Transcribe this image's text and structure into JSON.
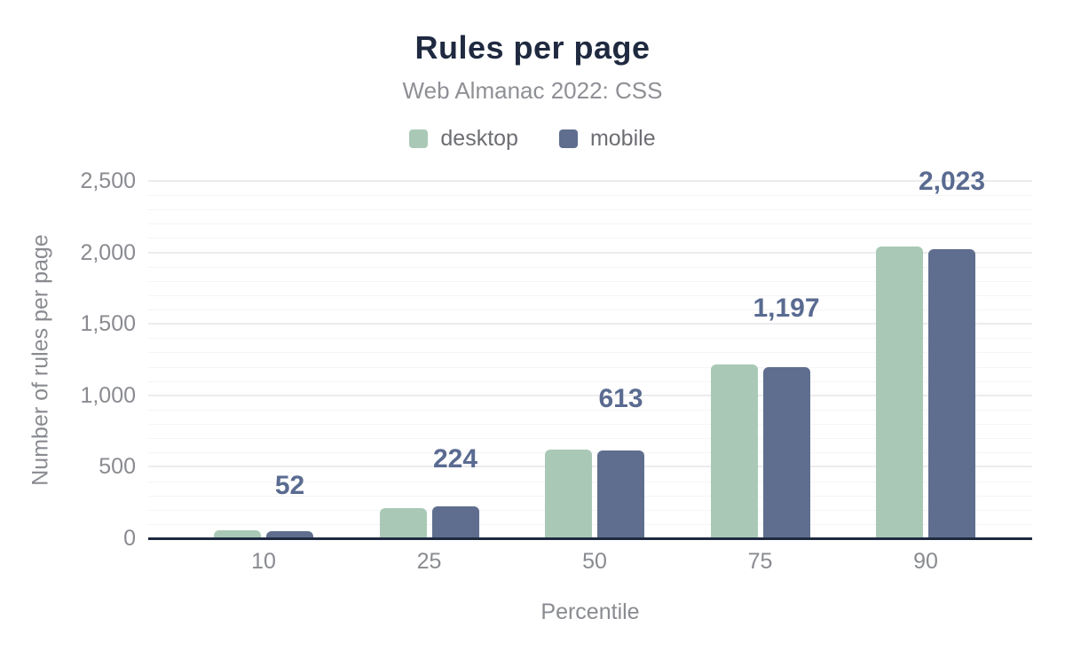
{
  "chart": {
    "title": "Rules per page",
    "subtitle": "Web Almanac 2022: CSS",
    "x_axis_title": "Percentile",
    "y_axis_title": "Number of rules per page"
  },
  "legend": {
    "items": [
      {
        "label": "desktop",
        "color": "#a9c9b6"
      },
      {
        "label": "mobile",
        "color": "#5f6e8e"
      }
    ]
  },
  "chart_data": {
    "type": "bar",
    "title": "Rules per page",
    "subtitle": "Web Almanac 2022: CSS",
    "xlabel": "Percentile",
    "ylabel": "Number of rules per page",
    "categories": [
      "10",
      "25",
      "50",
      "75",
      "90"
    ],
    "series": [
      {
        "name": "desktop",
        "color": "#a9c9b6",
        "estimated": true,
        "values": [
          57,
          210,
          619,
          1215,
          2040
        ]
      },
      {
        "name": "mobile",
        "color": "#5f6e8e",
        "estimated": false,
        "values": [
          52,
          224,
          613,
          1197,
          2023
        ]
      }
    ],
    "data_labels": {
      "series": "mobile",
      "labels": [
        "52",
        "224",
        "613",
        "1,197",
        "2,023"
      ]
    },
    "ylim": [
      0,
      2500
    ],
    "y_tick_labels": [
      "0",
      "500",
      "1,000",
      "1,500",
      "2,000",
      "2,500"
    ],
    "grid": "horizontal",
    "minor_grid_step": 100,
    "major_grid_step": 500,
    "legend_position": "top center"
  },
  "colors": {
    "background": "#ffffff",
    "title": "#1f2a40",
    "subtitle": "#8f9095",
    "legend_text": "#6d6e73",
    "axis_text": "#898b90",
    "data_label": "#5a6b91",
    "axis_line": "#1f2a40",
    "grid_minor": "#f5f5f6",
    "grid_major": "#ececee",
    "desktop_bar": "#a9c9b6",
    "mobile_bar": "#5f6e8e"
  }
}
